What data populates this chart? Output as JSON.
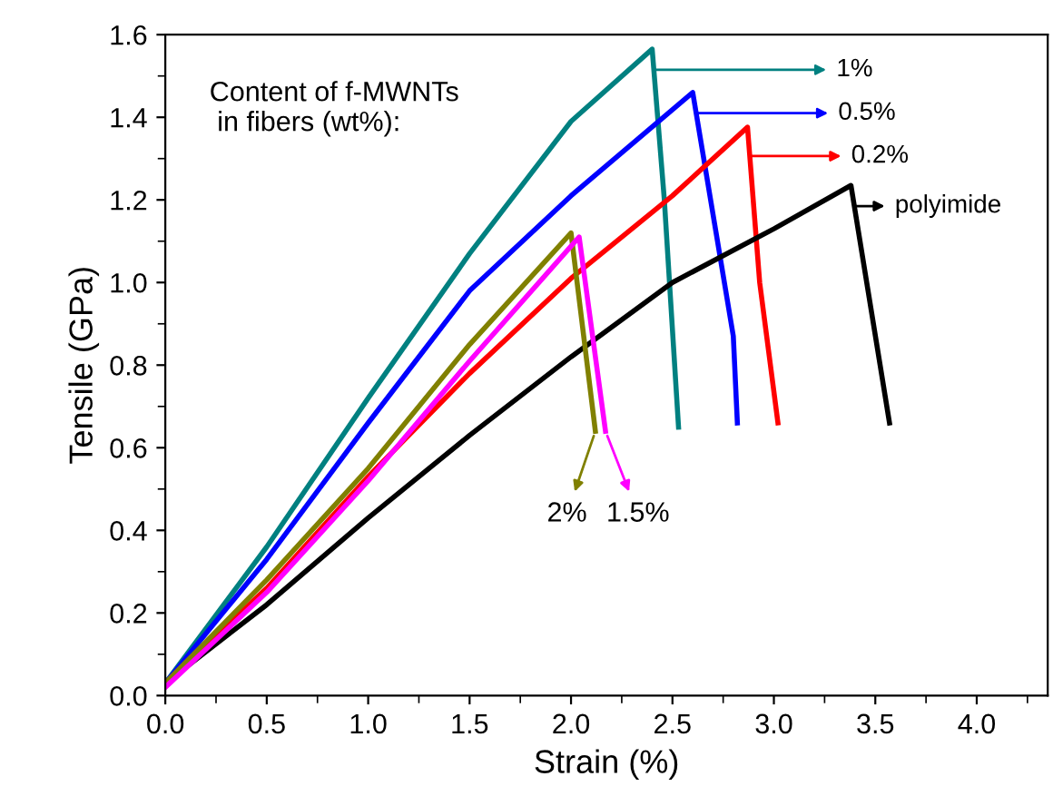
{
  "chart_data": {
    "type": "line",
    "xlabel": "Strain (%)",
    "ylabel": "Tensile (GPa)",
    "xlim": [
      0,
      4.35
    ],
    "ylim": [
      0,
      1.6
    ],
    "xticks": [
      {
        "value": 0,
        "label": "0.0"
      },
      {
        "value": 0.5,
        "label": "0.5"
      },
      {
        "value": 1,
        "label": "1.0"
      },
      {
        "value": 1.5,
        "label": "1.5"
      },
      {
        "value": 2,
        "label": "2.0"
      },
      {
        "value": 2.5,
        "label": "2.5"
      },
      {
        "value": 3,
        "label": "3.0"
      },
      {
        "value": 3.5,
        "label": "3.5"
      },
      {
        "value": 4,
        "label": "4.0"
      }
    ],
    "yticks": [
      {
        "value": 0,
        "label": "0.0"
      },
      {
        "value": 0.2,
        "label": "0.2"
      },
      {
        "value": 0.4,
        "label": "0.4"
      },
      {
        "value": 0.6,
        "label": "0.6"
      },
      {
        "value": 0.8,
        "label": "0.8"
      },
      {
        "value": 1,
        "label": "1.0"
      },
      {
        "value": 1.2,
        "label": "1.2"
      },
      {
        "value": 1.4,
        "label": "1.4"
      },
      {
        "value": 1.6,
        "label": "1.6"
      }
    ],
    "grid": false,
    "legend": "top right",
    "marker": "none",
    "line_style": "solid",
    "annotations": [
      "Content of f-MWNTs\n in fibers (wt%):"
    ],
    "series": [
      {
        "name": "1%",
        "color": "#008080",
        "x": [
          0,
          0.5,
          1.0,
          1.5,
          2.0,
          2.4,
          2.46,
          2.53
        ],
        "values": [
          0.03,
          0.36,
          0.72,
          1.07,
          1.39,
          1.565,
          1.2,
          0.65
        ]
      },
      {
        "name": "0.5%",
        "color": "#0000ff",
        "x": [
          0,
          0.5,
          1.0,
          1.5,
          2.0,
          2.6,
          2.8,
          2.82
        ],
        "values": [
          0.03,
          0.33,
          0.66,
          0.98,
          1.21,
          1.46,
          0.87,
          0.66
        ]
      },
      {
        "name": "0.2%",
        "color": "#ff0000",
        "x": [
          0,
          0.5,
          1.0,
          1.5,
          2.0,
          2.5,
          2.87,
          2.93,
          3.02
        ],
        "values": [
          0.03,
          0.26,
          0.53,
          0.78,
          1.01,
          1.21,
          1.376,
          1.0,
          0.66
        ]
      },
      {
        "name": "polyimide",
        "color": "#000000",
        "x": [
          0,
          0.5,
          1.0,
          1.5,
          2.0,
          2.5,
          3.0,
          3.38,
          3.57
        ],
        "values": [
          0.03,
          0.22,
          0.43,
          0.63,
          0.82,
          1.0,
          1.13,
          1.235,
          0.66
        ]
      },
      {
        "name": "2%",
        "color": "#808000",
        "x": [
          0,
          0.5,
          1.0,
          1.5,
          2.0,
          2.12
        ],
        "values": [
          0.03,
          0.28,
          0.55,
          0.85,
          1.12,
          0.64
        ]
      },
      {
        "name": "1.5%",
        "color": "#ff00ff",
        "x": [
          0,
          0.5,
          1.0,
          1.5,
          2.04,
          2.17
        ],
        "values": [
          0.02,
          0.25,
          0.52,
          0.81,
          1.11,
          0.64
        ]
      }
    ]
  }
}
